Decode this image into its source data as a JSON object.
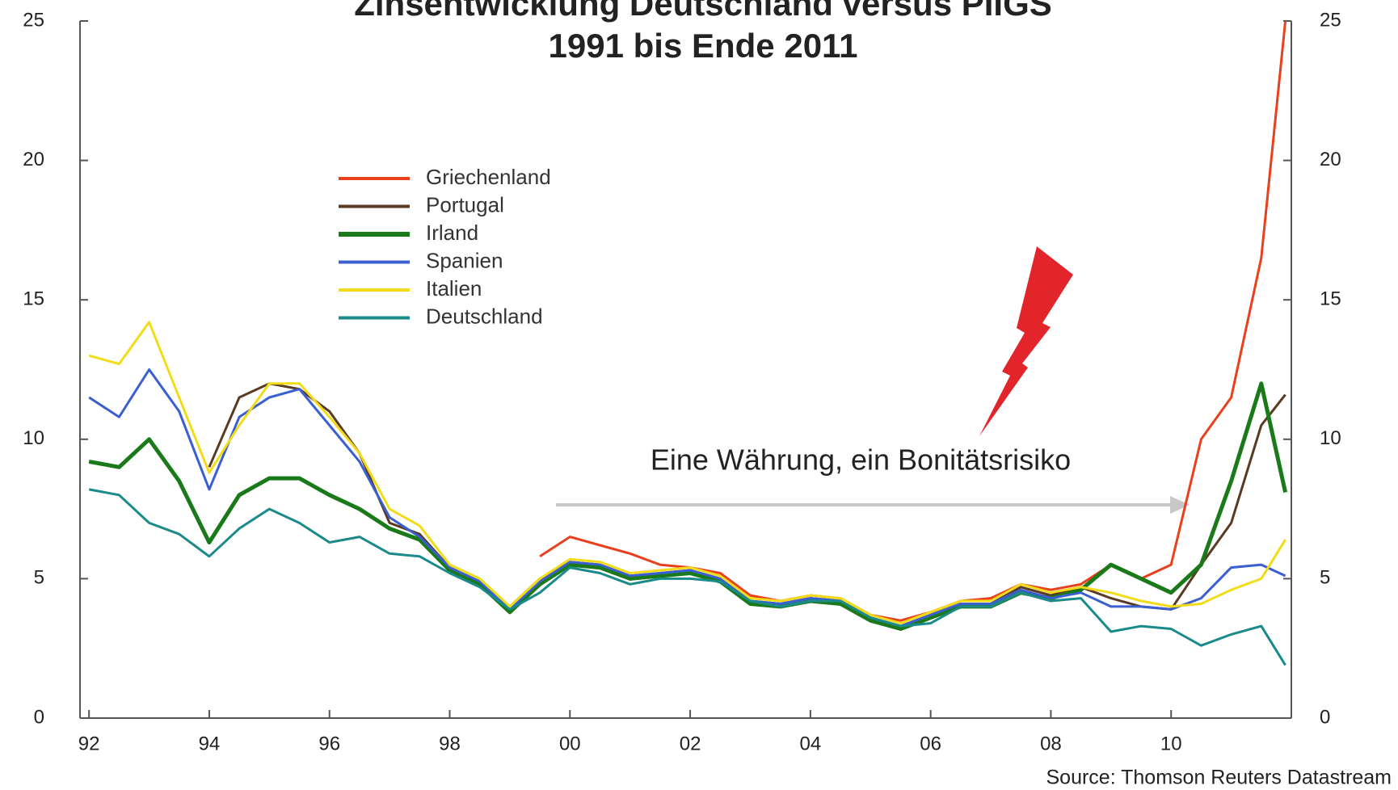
{
  "chart_data": {
    "type": "line",
    "title": "Zinsentwicklung Deutschland versus PIIGS",
    "subtitle": "1991 bis Ende 2011",
    "annotation": "Eine Währung, ein Bonitätsrisiko",
    "source": "Source: Thomson Reuters Datastream",
    "x": [
      1992,
      1992.5,
      1993,
      1993.5,
      1994,
      1994.5,
      1995,
      1995.5,
      1996,
      1996.5,
      1997,
      1997.5,
      1998,
      1998.5,
      1999,
      1999.5,
      2000,
      2000.5,
      2001,
      2001.5,
      2002,
      2002.5,
      2003,
      2003.5,
      2004,
      2004.5,
      2005,
      2005.5,
      2006,
      2006.5,
      2007,
      2007.5,
      2008,
      2008.5,
      2009,
      2009.5,
      2010,
      2010.5,
      2011,
      2011.5,
      2011.9
    ],
    "xlim": [
      1991.85,
      2012.0
    ],
    "xticks": [
      {
        "value": 1992,
        "label": "92"
      },
      {
        "value": 1994,
        "label": "94"
      },
      {
        "value": 1996,
        "label": "96"
      },
      {
        "value": 1998,
        "label": "98"
      },
      {
        "value": 2000,
        "label": "00"
      },
      {
        "value": 2002,
        "label": "02"
      },
      {
        "value": 2004,
        "label": "04"
      },
      {
        "value": 2006,
        "label": "06"
      },
      {
        "value": 2008,
        "label": "08"
      },
      {
        "value": 2010,
        "label": "10"
      }
    ],
    "ylim": [
      0,
      25
    ],
    "yticks": [
      0,
      5,
      10,
      15,
      20,
      25
    ],
    "y2lim": [
      0,
      25
    ],
    "y2ticks": [
      0,
      5,
      10,
      15,
      20,
      25
    ],
    "legend": "upper left",
    "series": [
      {
        "name": "Griechenland",
        "color": "#e8401c",
        "values": [
          null,
          null,
          null,
          null,
          null,
          null,
          null,
          null,
          null,
          null,
          null,
          null,
          null,
          null,
          null,
          5.8,
          6.5,
          6.2,
          5.9,
          5.5,
          5.4,
          5.2,
          4.4,
          4.2,
          4.4,
          4.3,
          3.7,
          3.5,
          3.8,
          4.2,
          4.3,
          4.8,
          4.6,
          4.8,
          5.5,
          5.0,
          5.5,
          10.0,
          11.5,
          16.5,
          25.0
        ]
      },
      {
        "name": "Portugal",
        "color": "#5a3a22",
        "values": [
          null,
          null,
          null,
          null,
          9.0,
          11.5,
          12.0,
          11.8,
          11.0,
          9.5,
          7.0,
          6.6,
          5.4,
          4.9,
          4.0,
          5.0,
          5.6,
          5.5,
          5.1,
          5.2,
          5.3,
          5.0,
          4.2,
          4.1,
          4.3,
          4.2,
          3.6,
          3.3,
          3.7,
          4.1,
          4.1,
          4.7,
          4.4,
          4.7,
          4.3,
          4.0,
          3.9,
          5.5,
          7.0,
          10.5,
          11.6
        ]
      },
      {
        "name": "Irland",
        "color": "#1a7a1a",
        "values": [
          9.2,
          9.0,
          10.0,
          8.5,
          6.3,
          8.0,
          8.6,
          8.6,
          8.0,
          7.5,
          6.8,
          6.4,
          5.3,
          4.8,
          3.8,
          4.8,
          5.5,
          5.4,
          5.0,
          5.1,
          5.2,
          4.9,
          4.1,
          4.0,
          4.2,
          4.1,
          3.5,
          3.2,
          3.6,
          4.0,
          4.0,
          4.5,
          4.3,
          4.6,
          5.5,
          5.0,
          4.5,
          5.5,
          8.5,
          12.0,
          8.1
        ]
      },
      {
        "name": "Spanien",
        "color": "#3a5fd0",
        "values": [
          11.5,
          10.8,
          12.5,
          11.0,
          8.2,
          10.8,
          11.5,
          11.8,
          10.5,
          9.2,
          7.2,
          6.5,
          5.4,
          4.9,
          3.9,
          4.9,
          5.6,
          5.5,
          5.1,
          5.2,
          5.3,
          5.0,
          4.2,
          4.1,
          4.3,
          4.2,
          3.6,
          3.3,
          3.7,
          4.1,
          4.1,
          4.6,
          4.3,
          4.5,
          4.0,
          4.0,
          3.9,
          4.3,
          5.4,
          5.5,
          5.1
        ]
      },
      {
        "name": "Italien",
        "color": "#f2dc1a",
        "values": [
          13.0,
          12.7,
          14.2,
          11.5,
          8.8,
          10.5,
          12.0,
          12.0,
          10.8,
          9.5,
          7.5,
          6.9,
          5.5,
          5.0,
          4.0,
          5.0,
          5.7,
          5.6,
          5.2,
          5.3,
          5.4,
          5.1,
          4.3,
          4.2,
          4.4,
          4.3,
          3.7,
          3.4,
          3.8,
          4.2,
          4.2,
          4.8,
          4.5,
          4.7,
          4.5,
          4.2,
          4.0,
          4.1,
          4.6,
          5.0,
          6.4
        ]
      },
      {
        "name": "Deutschland",
        "color": "#1a8a8a",
        "values": [
          8.2,
          8.0,
          7.0,
          6.6,
          5.8,
          6.8,
          7.5,
          7.0,
          6.3,
          6.5,
          5.9,
          5.8,
          5.2,
          4.7,
          3.9,
          4.5,
          5.4,
          5.2,
          4.8,
          5.0,
          5.0,
          4.9,
          4.2,
          4.0,
          4.2,
          4.2,
          3.6,
          3.3,
          3.4,
          4.0,
          4.0,
          4.5,
          4.2,
          4.3,
          3.1,
          3.3,
          3.2,
          2.6,
          3.0,
          3.3,
          1.9
        ]
      }
    ]
  }
}
